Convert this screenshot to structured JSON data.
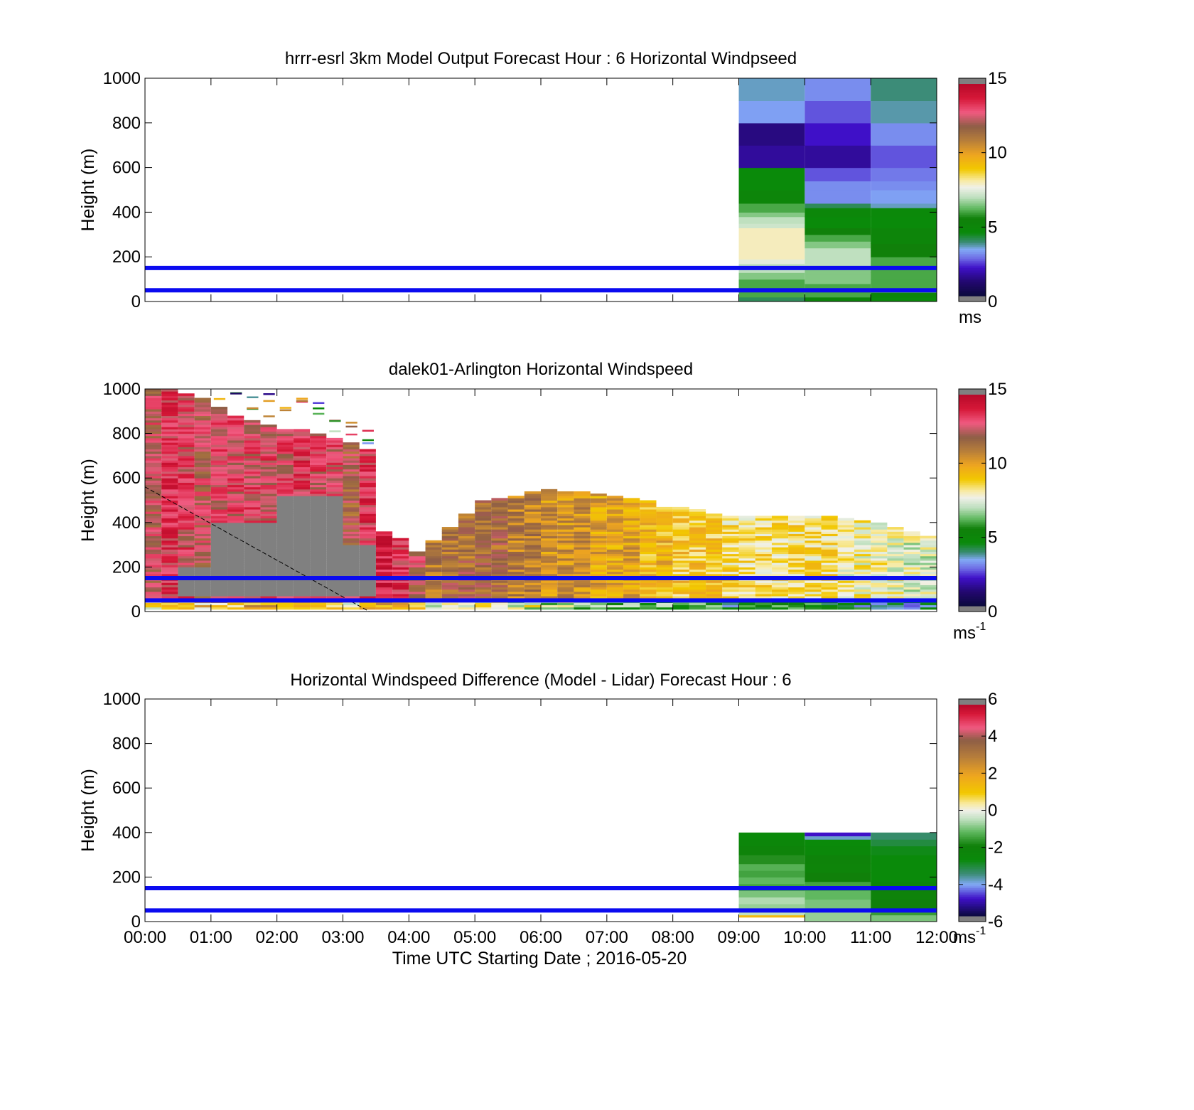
{
  "chart_data": [
    {
      "type": "heatmap",
      "title": "hrrr-esrl 3km Model Output   Forecast Hour : 6 Horizontal Windpseed",
      "ylabel": "Height (m)",
      "xlabel": "",
      "ylim": [
        0,
        1000
      ],
      "yticks": [
        "0",
        "200",
        "400",
        "600",
        "800",
        "1000"
      ],
      "xlim_hours": [
        0,
        12
      ],
      "colorbar": {
        "range": [
          0,
          15
        ],
        "ticks": [
          "0",
          "5",
          "10",
          "15"
        ],
        "unit": "ms",
        "unit_sup": "",
        "scale": "speed"
      },
      "reference_lines_m": [
        50,
        150
      ],
      "columns": [
        {
          "t0": 9,
          "t1": 10,
          "bins": [
            [
              0,
              20,
              4
            ],
            [
              20,
              40,
              6
            ],
            [
              40,
              60,
              6
            ],
            [
              60,
              80,
              6
            ],
            [
              80,
              100,
              6
            ],
            [
              100,
              130,
              6.5
            ],
            [
              130,
              150,
              7
            ],
            [
              150,
              170,
              7
            ],
            [
              170,
              190,
              7.5
            ],
            [
              190,
              250,
              8
            ],
            [
              250,
              280,
              8
            ],
            [
              280,
              300,
              8
            ],
            [
              300,
              330,
              8
            ],
            [
              330,
              350,
              7.2
            ],
            [
              350,
              380,
              7
            ],
            [
              380,
              400,
              6.5
            ],
            [
              400,
              440,
              6
            ],
            [
              440,
              500,
              5
            ],
            [
              500,
              540,
              4.5
            ],
            [
              540,
              600,
              4.5
            ],
            [
              600,
              700,
              1.5
            ],
            [
              700,
              800,
              1.2
            ],
            [
              800,
              900,
              3.2
            ],
            [
              900,
              1000,
              3.5
            ]
          ]
        },
        {
          "t0": 10,
          "t1": 11,
          "bins": [
            [
              0,
              20,
              5
            ],
            [
              20,
              50,
              6
            ],
            [
              50,
              80,
              6
            ],
            [
              80,
              120,
              6.5
            ],
            [
              120,
              160,
              6.5
            ],
            [
              160,
              200,
              7
            ],
            [
              200,
              240,
              7
            ],
            [
              240,
              270,
              6.5
            ],
            [
              270,
              300,
              6
            ],
            [
              300,
              330,
              5.5
            ],
            [
              330,
              380,
              4.5
            ],
            [
              380,
              420,
              4.8
            ],
            [
              420,
              440,
              4
            ],
            [
              440,
              500,
              3
            ],
            [
              500,
              540,
              3
            ],
            [
              540,
              600,
              2.5
            ],
            [
              600,
              700,
              1.5
            ],
            [
              700,
              800,
              2
            ],
            [
              800,
              900,
              2.5
            ],
            [
              900,
              1000,
              3
            ]
          ]
        },
        {
          "t0": 11,
          "t1": 12,
          "bins": [
            [
              0,
              20,
              4.5
            ],
            [
              20,
              40,
              5
            ],
            [
              40,
              60,
              6
            ],
            [
              60,
              80,
              6
            ],
            [
              80,
              100,
              6
            ],
            [
              100,
              130,
              6
            ],
            [
              130,
              160,
              6
            ],
            [
              160,
              200,
              6
            ],
            [
              200,
              230,
              5.5
            ],
            [
              230,
              260,
              5.5
            ],
            [
              260,
              300,
              5
            ],
            [
              300,
              330,
              5
            ],
            [
              330,
              380,
              4.5
            ],
            [
              380,
              420,
              4.6
            ],
            [
              420,
              440,
              3.5
            ],
            [
              440,
              500,
              3.2
            ],
            [
              500,
              540,
              3
            ],
            [
              540,
              600,
              2.8
            ],
            [
              600,
              700,
              2.5
            ],
            [
              700,
              800,
              3
            ],
            [
              800,
              900,
              3.6
            ],
            [
              900,
              1000,
              3.8
            ]
          ]
        }
      ]
    },
    {
      "type": "heatmap",
      "title": "dalek01-Arlington  Horizontal Windspeed",
      "ylabel": "Height (m)",
      "xlabel": "",
      "ylim": [
        0,
        1000
      ],
      "yticks": [
        "0",
        "200",
        "400",
        "600",
        "800",
        "1000"
      ],
      "xlim_hours": [
        0,
        12
      ],
      "colorbar": {
        "range": [
          0,
          15
        ],
        "ticks": [
          "0",
          "5",
          "10",
          "15"
        ],
        "unit": "ms",
        "unit_sup": "-1",
        "scale": "speed"
      },
      "reference_lines_m": [
        50,
        150
      ],
      "bin_width_hours": 0.25,
      "clear_air_limit_m": [
        [
          0,
          1000
        ],
        [
          0.25,
          1000
        ],
        [
          0.5,
          980
        ],
        [
          0.75,
          960
        ],
        [
          1,
          920
        ],
        [
          1.25,
          880
        ],
        [
          1.5,
          860
        ],
        [
          1.75,
          840
        ],
        [
          2,
          820
        ],
        [
          2.25,
          820
        ],
        [
          2.5,
          800
        ],
        [
          2.75,
          780
        ],
        [
          3,
          760
        ],
        [
          3.25,
          730
        ],
        [
          3.5,
          360
        ],
        [
          3.75,
          330
        ],
        [
          4,
          270
        ],
        [
          4.25,
          320
        ],
        [
          4.5,
          380
        ],
        [
          4.75,
          440
        ],
        [
          5,
          500
        ],
        [
          5.25,
          510
        ],
        [
          5.5,
          520
        ],
        [
          5.75,
          540
        ],
        [
          6,
          550
        ],
        [
          6.25,
          540
        ],
        [
          6.5,
          540
        ],
        [
          6.75,
          530
        ],
        [
          7,
          520
        ],
        [
          7.25,
          510
        ],
        [
          7.5,
          500
        ],
        [
          7.75,
          470
        ],
        [
          8,
          470
        ],
        [
          8.25,
          460
        ],
        [
          8.5,
          440
        ],
        [
          8.75,
          430
        ],
        [
          9,
          430
        ],
        [
          9.25,
          430
        ],
        [
          9.5,
          430
        ],
        [
          9.75,
          430
        ],
        [
          10,
          430
        ],
        [
          10.25,
          430
        ],
        [
          10.5,
          420
        ],
        [
          10.75,
          410
        ],
        [
          11,
          400
        ],
        [
          11.25,
          380
        ],
        [
          11.5,
          360
        ],
        [
          11.75,
          340
        ]
      ],
      "series": [
        {
          "name": "",
          "t_hours": [
            0,
            0.25,
            0.5,
            0.75,
            1,
            1.25,
            1.5,
            1.75,
            2,
            2.25,
            2.5,
            2.75,
            3,
            3.25,
            3.5,
            3.75,
            4,
            4.25,
            4.5,
            4.75,
            5,
            5.25,
            5.5,
            5.75,
            6,
            6.25,
            6.5,
            6.75,
            7,
            7.25,
            7.5,
            7.75,
            8,
            8.25,
            8.5,
            8.75,
            9,
            9.25,
            9.5,
            9.75,
            10,
            10.25,
            10.5,
            10.75,
            11,
            11.25,
            11.5,
            11.75
          ],
          "wind_ms": [
            12.5,
            13.5,
            13,
            12.5,
            13,
            13,
            13,
            13,
            13,
            13.5,
            13,
            13,
            12,
            13.5,
            14,
            13.5,
            12.5,
            11,
            11.5,
            11.5,
            11.5,
            11.5,
            11,
            11,
            10.5,
            10.5,
            10.5,
            10,
            10,
            10,
            9.5,
            9.5,
            9,
            9,
            9,
            8.5,
            8.5,
            8.5,
            8.5,
            8.5,
            8.5,
            8.5,
            8,
            8,
            8,
            7.8,
            7.5,
            7.5
          ]
        }
      ]
    },
    {
      "type": "heatmap",
      "title": "Horizontal Windspeed Difference (Model - Lidar) Forecast Hour : 6",
      "ylabel": "Height (m)",
      "xlabel": "Time UTC  Starting Date ; 2016-05-20",
      "ylim": [
        0,
        1000
      ],
      "yticks": [
        "0",
        "200",
        "400",
        "600",
        "800",
        "1000"
      ],
      "xticks": [
        "00:00",
        "01:00",
        "02:00",
        "03:00",
        "04:00",
        "05:00",
        "06:00",
        "07:00",
        "08:00",
        "09:00",
        "10:00",
        "11:00",
        "12:00"
      ],
      "xlim_hours": [
        0,
        12
      ],
      "colorbar": {
        "range": [
          -6,
          6
        ],
        "ticks": [
          "-6",
          "-4",
          "-2",
          "0",
          "2",
          "4",
          "6"
        ],
        "unit": "ms",
        "unit_sup": "-1",
        "scale": "diff"
      },
      "reference_lines_m": [
        50,
        150
      ],
      "columns": [
        {
          "t0": 9,
          "t1": 10,
          "bins": [
            [
              20,
              30,
              1.5
            ],
            [
              30,
              50,
              -0.5
            ],
            [
              50,
              80,
              -0.8
            ],
            [
              80,
              110,
              -0.6
            ],
            [
              110,
              140,
              -1
            ],
            [
              140,
              170,
              -1.5
            ],
            [
              170,
              200,
              -1.2
            ],
            [
              200,
              230,
              -1.5
            ],
            [
              230,
              260,
              -1.3
            ],
            [
              260,
              300,
              -1.8
            ],
            [
              300,
              340,
              -2.2
            ],
            [
              340,
              370,
              -2.5
            ],
            [
              370,
              400,
              -2.8
            ]
          ]
        },
        {
          "t0": 10,
          "t1": 11,
          "bins": [
            [
              0,
              30,
              -0.8
            ],
            [
              30,
              60,
              -0.8
            ],
            [
              60,
              100,
              -1
            ],
            [
              100,
              140,
              -1.2
            ],
            [
              140,
              180,
              -1.5
            ],
            [
              180,
              220,
              -2
            ],
            [
              220,
              260,
              -2.3
            ],
            [
              260,
              300,
              -2.2
            ],
            [
              300,
              340,
              -2.6
            ],
            [
              340,
              370,
              -2.8
            ],
            [
              370,
              385,
              -4
            ],
            [
              385,
              400,
              -5
            ]
          ]
        },
        {
          "t0": 11,
          "t1": 12,
          "bins": [
            [
              0,
              30,
              -1
            ],
            [
              30,
              60,
              -1.6
            ],
            [
              60,
              100,
              -2
            ],
            [
              100,
              140,
              -2.2
            ],
            [
              140,
              180,
              -2.5
            ],
            [
              180,
              220,
              -2.8
            ],
            [
              220,
              260,
              -2.8
            ],
            [
              260,
              300,
              -2.8
            ],
            [
              300,
              340,
              -2.9
            ],
            [
              340,
              370,
              -3.2
            ],
            [
              370,
              400,
              -3.5
            ]
          ]
        }
      ]
    }
  ],
  "colors": {
    "reference_line": "#0b0bf0",
    "no_data_gray": "#808080",
    "background": "#ffffff"
  }
}
